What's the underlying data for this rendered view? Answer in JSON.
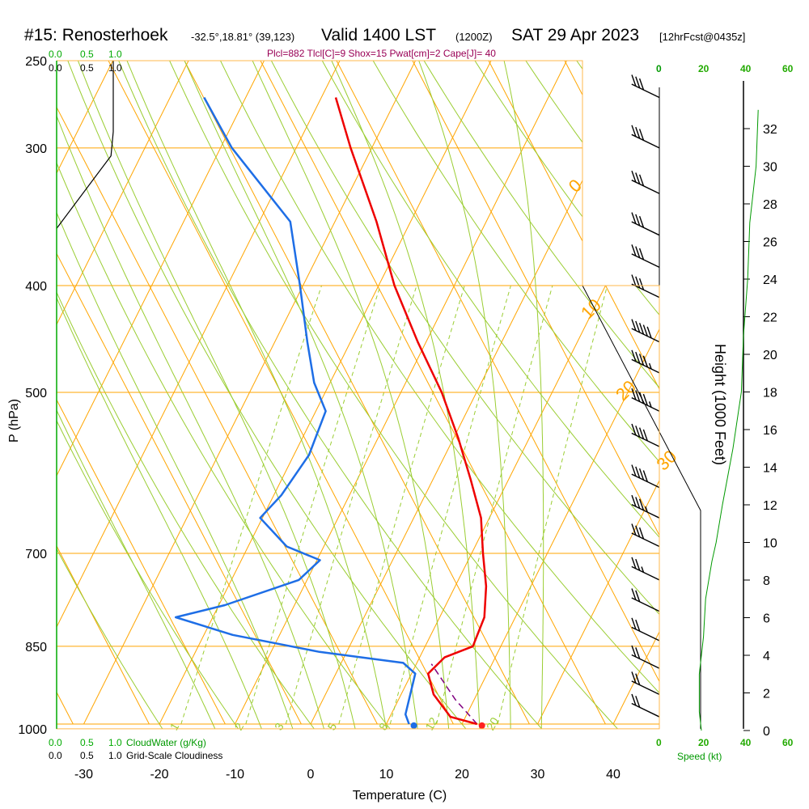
{
  "header": {
    "title_main": "#15: Renosterhoek",
    "title_coords": "-32.5°,18.81° (39,123)",
    "title_valid": "Valid 1400 LST",
    "title_utc": "(1200Z)",
    "title_date": "SAT 29 Apr 2023",
    "title_fcst": "[12hrFcst@0435z]"
  },
  "indices": "Plcl=882 Tlcl[C]=9 Shox=15 Pwat[cm]=2 Cape[J]= 40",
  "axes": {
    "x_label": "Temperature (C)",
    "y_label": "P (hPa)",
    "right_label": "Height (1000 Feet)",
    "speed_label": "Speed (kt)",
    "cloudwater_label": "CloudWater (g/Kg)",
    "cloudiness_label": "Grid-Scale Cloudiness"
  },
  "colors": {
    "isotherm_grid": "#ffa500",
    "dry_adiabat": "#9acd32",
    "moist_adiabat": "#9acd32",
    "mixing_ratio": "#9acd32",
    "temperature": "#ee0000",
    "dewpoint": "#1e6ee6",
    "parcel": "#800080",
    "wind_speed": "#009900",
    "cloud_scale": "#00aa00"
  },
  "chart_data": {
    "type": "skew-t",
    "pressure_levels": [
      250,
      300,
      400,
      500,
      700,
      850,
      1000
    ],
    "x_ticks": [
      -30,
      -20,
      -10,
      0,
      10,
      20,
      30,
      40
    ],
    "xlim": [
      -30,
      45
    ],
    "plim": [
      1000,
      250
    ],
    "isotherm_labels": [
      -10,
      0,
      10,
      20,
      30
    ],
    "left_isotherm_labels": [
      10,
      0,
      -10,
      -20,
      -30
    ],
    "mixing_ratio_labels": [
      "1",
      "2",
      "3",
      "5",
      "8",
      "12",
      "20"
    ],
    "mixing_ratio_values": [
      1,
      2,
      3,
      5,
      8,
      12,
      20
    ],
    "dry_adiabats_theta_c": [
      -20,
      -10,
      0,
      10,
      20,
      30,
      40,
      50,
      60,
      70,
      80,
      90,
      100,
      110,
      120,
      130
    ],
    "moist_adiabat_base_c": [
      -10,
      -4,
      0,
      4,
      8,
      12,
      16,
      20,
      24,
      28,
      32
    ],
    "temperature": [
      {
        "p": 1000,
        "t": 22
      },
      {
        "p": 985,
        "t": 18
      },
      {
        "p": 940,
        "t": 14.3
      },
      {
        "p": 900,
        "t": 12.2
      },
      {
        "p": 870,
        "t": 13.3
      },
      {
        "p": 850,
        "t": 16.3
      },
      {
        "p": 800,
        "t": 15.9
      },
      {
        "p": 750,
        "t": 14.1
      },
      {
        "p": 700,
        "t": 11.5
      },
      {
        "p": 650,
        "t": 8.9
      },
      {
        "p": 600,
        "t": 5.0
      },
      {
        "p": 550,
        "t": 0.6
      },
      {
        "p": 500,
        "t": -4.6
      },
      {
        "p": 450,
        "t": -11.1
      },
      {
        "p": 400,
        "t": -17.9
      },
      {
        "p": 350,
        "t": -24.5
      },
      {
        "p": 300,
        "t": -32.8
      },
      {
        "p": 270,
        "t": -38.1
      }
    ],
    "dewpoint": [
      {
        "p": 1000,
        "t": 13
      },
      {
        "p": 980,
        "t": 11.9
      },
      {
        "p": 900,
        "t": 10.5
      },
      {
        "p": 880,
        "t": 8.2
      },
      {
        "p": 860,
        "t": -3.6
      },
      {
        "p": 830,
        "t": -16.2
      },
      {
        "p": 800,
        "t": -24.9
      },
      {
        "p": 780,
        "t": -19.2
      },
      {
        "p": 740,
        "t": -11.1
      },
      {
        "p": 710,
        "t": -9.6
      },
      {
        "p": 690,
        "t": -14.9
      },
      {
        "p": 650,
        "t": -20.3
      },
      {
        "p": 620,
        "t": -19.0
      },
      {
        "p": 570,
        "t": -18.0
      },
      {
        "p": 520,
        "t": -18.7
      },
      {
        "p": 490,
        "t": -22.1
      },
      {
        "p": 450,
        "t": -25.7
      },
      {
        "p": 400,
        "t": -30.4
      },
      {
        "p": 350,
        "t": -35.9
      },
      {
        "p": 300,
        "t": -48.5
      },
      {
        "p": 270,
        "t": -55.5
      }
    ],
    "parcel": [
      {
        "p": 1000,
        "t": 22
      },
      {
        "p": 950,
        "t": 17.5
      },
      {
        "p": 900,
        "t": 13.5
      },
      {
        "p": 882,
        "t": 12
      }
    ],
    "surface_temperature": 22,
    "surface_dewpoint": 13,
    "wind_speed_kt": [
      {
        "h": 0,
        "v": 20
      },
      {
        "h": 1,
        "v": 19
      },
      {
        "h": 3,
        "v": 19
      },
      {
        "h": 5,
        "v": 21
      },
      {
        "h": 7,
        "v": 22
      },
      {
        "h": 9,
        "v": 25
      },
      {
        "h": 10,
        "v": 27
      },
      {
        "h": 12,
        "v": 30
      },
      {
        "h": 15,
        "v": 35
      },
      {
        "h": 18,
        "v": 39
      },
      {
        "h": 21,
        "v": 40
      },
      {
        "h": 24,
        "v": 42
      },
      {
        "h": 27,
        "v": 43
      },
      {
        "h": 30,
        "v": 46
      },
      {
        "h": 33,
        "v": 47
      }
    ],
    "wind_barbs": [
      {
        "p": 270,
        "speed": 30
      },
      {
        "p": 300,
        "speed": 30
      },
      {
        "p": 330,
        "speed": 30
      },
      {
        "p": 360,
        "speed": 30
      },
      {
        "p": 385,
        "speed": 30
      },
      {
        "p": 410,
        "speed": 30
      },
      {
        "p": 450,
        "speed": 50
      },
      {
        "p": 480,
        "speed": 45
      },
      {
        "p": 520,
        "speed": 45
      },
      {
        "p": 560,
        "speed": 40
      },
      {
        "p": 610,
        "speed": 40
      },
      {
        "p": 650,
        "speed": 35
      },
      {
        "p": 690,
        "speed": 30
      },
      {
        "p": 740,
        "speed": 25
      },
      {
        "p": 790,
        "speed": 20
      },
      {
        "p": 840,
        "speed": 20
      },
      {
        "p": 890,
        "speed": 20
      },
      {
        "p": 940,
        "speed": 20
      },
      {
        "p": 985,
        "speed": 20
      }
    ],
    "cloudwater_ticks": [
      "0.0",
      "0.5",
      "1.0"
    ],
    "cloudiness_ticks": [
      "0.0",
      "0.5",
      "1.0"
    ],
    "cloudiness_profile": [
      {
        "p": 250,
        "v": 1.0
      },
      {
        "p": 290,
        "v": 1.0
      },
      {
        "p": 305,
        "v": 0.96
      },
      {
        "p": 355,
        "v": 0.0
      }
    ],
    "speed_ticks": [
      "0",
      "20",
      "40",
      "60"
    ],
    "height_ticks_kft": [
      0,
      2,
      4,
      6,
      8,
      10,
      12,
      14,
      16,
      18,
      20,
      22,
      24,
      26,
      28,
      30,
      32
    ]
  }
}
